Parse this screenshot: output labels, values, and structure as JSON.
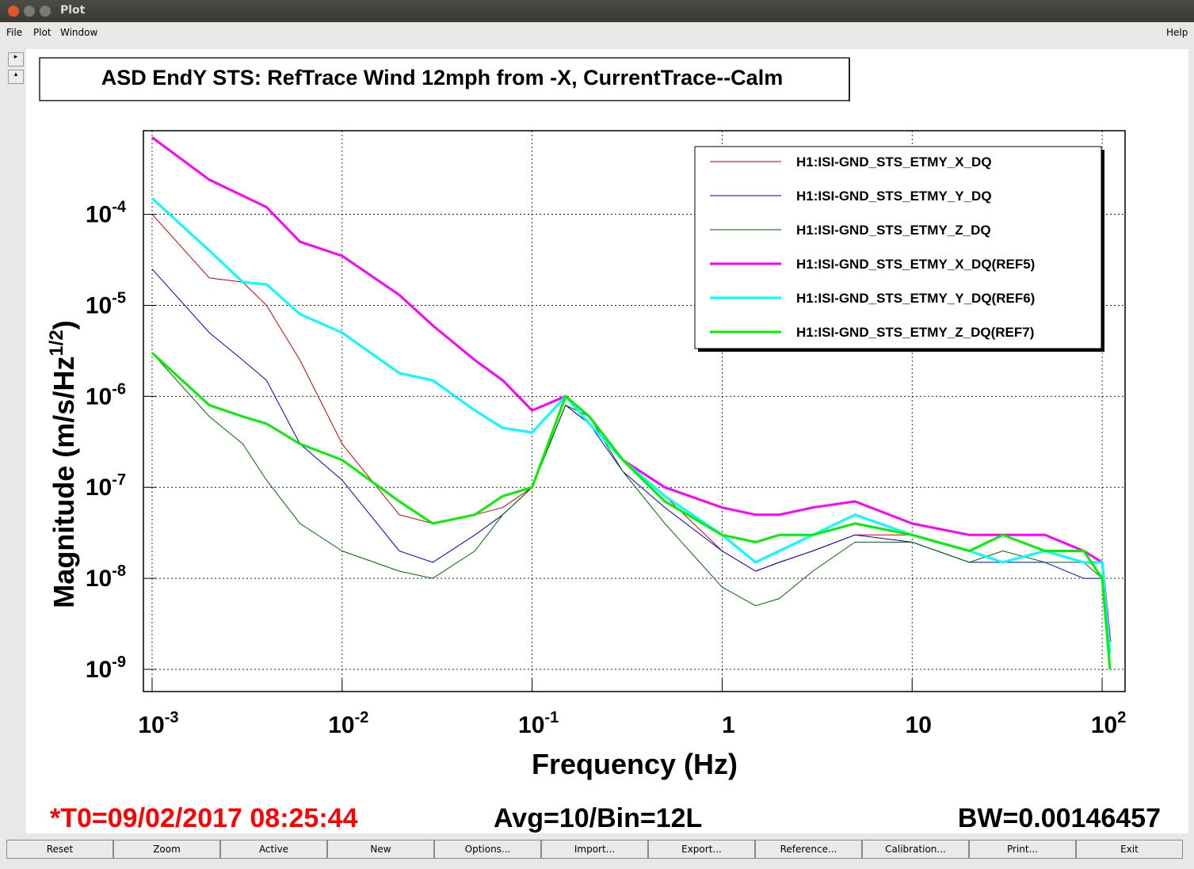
{
  "window": {
    "title": "Plot",
    "menu": [
      "File",
      "Plot",
      "Window"
    ],
    "help": "Help",
    "buttons": [
      "Reset",
      "Zoom",
      "Active",
      "New",
      "Options...",
      "Import...",
      "Export...",
      "Reference...",
      "Calibration...",
      "Print...",
      "Exit"
    ]
  },
  "chart_data": {
    "type": "line",
    "title": "ASD EndY STS: RefTrace Wind 12mph from -X, CurrentTrace--Calm",
    "x_label": "Frequency (Hz)",
    "y_label": {
      "text": "Magnitude (m/s/Hz",
      "sup": "1/2",
      "close": ")"
    },
    "log_x": true,
    "log_y": true,
    "grid": true,
    "legend": "top-right",
    "xlim": [
      0.0009,
      132
    ],
    "ylim": [
      5.7e-10,
      0.00083
    ],
    "xticks": [
      {
        "value": 0.001,
        "label": "10",
        "exponent": "-3"
      },
      {
        "value": 0.01,
        "label": "10",
        "exponent": "-2"
      },
      {
        "value": 0.1,
        "label": "10",
        "exponent": "-1"
      },
      1,
      10,
      {
        "value": 100,
        "label": "10",
        "exponent": "2"
      }
    ],
    "yticks": [
      {
        "value": 1e-09,
        "label": "10",
        "exponent": "-9"
      },
      {
        "value": 1e-08,
        "label": "10",
        "exponent": "-8"
      },
      {
        "value": 1e-07,
        "label": "10",
        "exponent": "-7"
      },
      {
        "value": 1e-06,
        "label": "10",
        "exponent": "-6"
      },
      {
        "value": 1e-05,
        "label": "10",
        "exponent": "-5"
      },
      {
        "value": 0.0001,
        "label": "10",
        "exponent": "-4"
      }
    ],
    "x": [
      0.001,
      0.002,
      0.003,
      0.004,
      0.006,
      0.01,
      0.02,
      0.03,
      0.05,
      0.07,
      0.1,
      0.15,
      0.2,
      0.3,
      0.5,
      1,
      1.5,
      2,
      3,
      5,
      10,
      20,
      30,
      50,
      80,
      100,
      110
    ],
    "series": [
      {
        "name": "H1:ISI-GND_STS_ETMY_X_DQ",
        "color": "#cc0000",
        "line_width": 1,
        "values": [
          0.0001,
          2e-05,
          1.8e-05,
          1e-05,
          2.5e-06,
          3e-07,
          5e-08,
          4e-08,
          5e-08,
          6e-08,
          1e-07,
          8e-07,
          5e-07,
          2e-07,
          8e-08,
          2e-08,
          1.2e-08,
          1.5e-08,
          2e-08,
          3e-08,
          3e-08,
          2e-08,
          3e-08,
          2e-08,
          1.5e-08,
          1.5e-08,
          1.5e-09
        ]
      },
      {
        "name": "H1:ISI-GND_STS_ETMY_Y_DQ",
        "color": "#0000cc",
        "line_width": 1,
        "values": [
          2.5e-05,
          5e-06,
          2.5e-06,
          1.5e-06,
          3e-07,
          1.2e-07,
          2e-08,
          1.5e-08,
          3e-08,
          5e-08,
          1e-07,
          8e-07,
          5e-07,
          1.5e-07,
          6e-08,
          2e-08,
          1.2e-08,
          1.5e-08,
          2e-08,
          3e-08,
          2.5e-08,
          1.5e-08,
          1.5e-08,
          1.5e-08,
          1e-08,
          1e-08,
          1e-09
        ]
      },
      {
        "name": "H1:ISI-GND_STS_ETMY_Z_DQ",
        "color": "#006600",
        "line_width": 1,
        "values": [
          3e-06,
          6e-07,
          3e-07,
          1.2e-07,
          4e-08,
          2e-08,
          1.2e-08,
          1e-08,
          2e-08,
          5e-08,
          1e-07,
          8e-07,
          6e-07,
          1.5e-07,
          4e-08,
          8e-09,
          5e-09,
          6e-09,
          1.2e-08,
          2.5e-08,
          2.5e-08,
          1.5e-08,
          2e-08,
          1.5e-08,
          1.5e-08,
          1e-08,
          1e-09
        ]
      },
      {
        "name": "H1:ISI-GND_STS_ETMY_X_DQ(REF5)",
        "color": "#ff00ff",
        "line_width": 3,
        "values": [
          0.0007,
          0.00024,
          0.00016,
          0.00012,
          5e-05,
          3.5e-05,
          1.3e-05,
          6e-06,
          2.5e-06,
          1.5e-06,
          7e-07,
          1e-06,
          6e-07,
          2e-07,
          1e-07,
          6e-08,
          5e-08,
          5e-08,
          6e-08,
          7e-08,
          4e-08,
          3e-08,
          3e-08,
          3e-08,
          2e-08,
          1.5e-08,
          2e-09
        ]
      },
      {
        "name": "H1:ISI-GND_STS_ETMY_Y_DQ(REF6)",
        "color": "#00ffff",
        "line_width": 3,
        "values": [
          0.00015,
          4e-05,
          1.8e-05,
          1.7e-05,
          8e-06,
          5e-06,
          1.8e-06,
          1.5e-06,
          7e-07,
          4.5e-07,
          4e-07,
          1e-06,
          5e-07,
          2e-07,
          8e-08,
          3e-08,
          1.5e-08,
          2e-08,
          3e-08,
          5e-08,
          3e-08,
          2e-08,
          1.5e-08,
          2e-08,
          1.5e-08,
          1.5e-08,
          1.5e-09
        ]
      },
      {
        "name": "H1:ISI-GND_STS_ETMY_Z_DQ(REF7)",
        "color": "#00ee00",
        "line_width": 3,
        "values": [
          3e-06,
          8e-07,
          6e-07,
          5e-07,
          3e-07,
          2e-07,
          7e-08,
          4e-08,
          5e-08,
          8e-08,
          1e-07,
          1e-06,
          6e-07,
          2e-07,
          7e-08,
          3e-08,
          2.5e-08,
          3e-08,
          3e-08,
          4e-08,
          3e-08,
          2e-08,
          3e-08,
          2e-08,
          2e-08,
          1e-08,
          1e-09
        ]
      }
    ]
  },
  "footer": {
    "t0": "*T0=09/02/2017 08:25:44",
    "avg": "Avg=10/Bin=12L",
    "bw": "BW=0.00146457"
  }
}
